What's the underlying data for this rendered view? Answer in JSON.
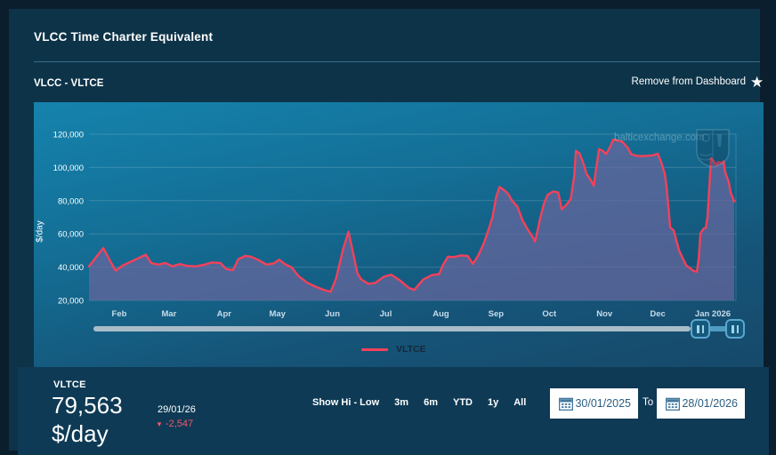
{
  "header": {
    "title": "VLCC Time Charter Equivalent",
    "subtitle": "VLCC - VLTCE",
    "action_label": "Remove from Dashboard",
    "star_icon": "★"
  },
  "chart": {
    "watermark": "balticexchange.com",
    "ylabel": "$/day",
    "legend": [
      {
        "label": "VLTCE",
        "color": "#f4415a"
      }
    ]
  },
  "chart_data": {
    "type": "line",
    "title": "VLCC - VLTCE",
    "ylabel": "$/day",
    "ylim": [
      20000,
      120000
    ],
    "yticks": [
      20000,
      40000,
      60000,
      80000,
      100000,
      120000
    ],
    "x_unit": "days since 30/01/2025",
    "xlim": [
      0,
      364
    ],
    "x_range_labels": [
      "30/01/2025",
      "28/01/2026"
    ],
    "xticks": [
      {
        "label": "Feb",
        "day": 17
      },
      {
        "label": "Mar",
        "day": 45
      },
      {
        "label": "Apr",
        "day": 76
      },
      {
        "label": "May",
        "day": 106
      },
      {
        "label": "Jun",
        "day": 137
      },
      {
        "label": "Jul",
        "day": 167
      },
      {
        "label": "Aug",
        "day": 198
      },
      {
        "label": "Sep",
        "day": 229
      },
      {
        "label": "Oct",
        "day": 259
      },
      {
        "label": "Nov",
        "day": 290
      },
      {
        "label": "Dec",
        "day": 320
      },
      {
        "label": "Jan 2026",
        "day": 351
      }
    ],
    "grid": true,
    "legend_position": "bottom",
    "series": [
      {
        "name": "VLTCE",
        "color": "#f4415a",
        "points": [
          [
            0,
            40500
          ],
          [
            4,
            46000
          ],
          [
            8,
            51500
          ],
          [
            12,
            43500
          ],
          [
            15,
            37800
          ],
          [
            19,
            41000
          ],
          [
            24,
            43500
          ],
          [
            28,
            45500
          ],
          [
            32,
            47500
          ],
          [
            35,
            42500
          ],
          [
            39,
            41500
          ],
          [
            43,
            42500
          ],
          [
            47,
            40500
          ],
          [
            51,
            41800
          ],
          [
            55,
            40800
          ],
          [
            60,
            40500
          ],
          [
            65,
            41500
          ],
          [
            69,
            42800
          ],
          [
            74,
            42500
          ],
          [
            77,
            39000
          ],
          [
            81,
            38200
          ],
          [
            84,
            44800
          ],
          [
            88,
            46800
          ],
          [
            91,
            46300
          ],
          [
            95,
            44500
          ],
          [
            100,
            41500
          ],
          [
            104,
            42300
          ],
          [
            107,
            44500
          ],
          [
            110,
            42000
          ],
          [
            114,
            39800
          ],
          [
            118,
            34500
          ],
          [
            123,
            30500
          ],
          [
            128,
            28000
          ],
          [
            133,
            26000
          ],
          [
            136,
            25200
          ],
          [
            139,
            33000
          ],
          [
            143,
            51000
          ],
          [
            146,
            61300
          ],
          [
            149,
            46500
          ],
          [
            151,
            36500
          ],
          [
            153,
            32800
          ],
          [
            157,
            30000
          ],
          [
            161,
            30500
          ],
          [
            166,
            34300
          ],
          [
            170,
            35500
          ],
          [
            175,
            32000
          ],
          [
            180,
            27500
          ],
          [
            183,
            26300
          ],
          [
            188,
            32500
          ],
          [
            193,
            35300
          ],
          [
            197,
            35800
          ],
          [
            199,
            41000
          ],
          [
            202,
            46300
          ],
          [
            205,
            46000
          ],
          [
            209,
            47000
          ],
          [
            213,
            46800
          ],
          [
            216,
            42000
          ],
          [
            219,
            47000
          ],
          [
            222,
            54000
          ],
          [
            224,
            60000
          ],
          [
            227,
            70000
          ],
          [
            229,
            82000
          ],
          [
            231,
            88300
          ],
          [
            234,
            86000
          ],
          [
            236,
            83800
          ],
          [
            238,
            80000
          ],
          [
            241,
            76500
          ],
          [
            244,
            68000
          ],
          [
            247,
            62500
          ],
          [
            250,
            57500
          ],
          [
            251,
            55400
          ],
          [
            254,
            70000
          ],
          [
            256,
            78300
          ],
          [
            258,
            83500
          ],
          [
            261,
            85500
          ],
          [
            264,
            85000
          ],
          [
            266,
            74700
          ],
          [
            269,
            78000
          ],
          [
            271,
            81000
          ],
          [
            273,
            95000
          ],
          [
            274,
            110000
          ],
          [
            276,
            108500
          ],
          [
            278,
            103000
          ],
          [
            280,
            96000
          ],
          [
            282,
            93000
          ],
          [
            284,
            89000
          ],
          [
            285,
            97000
          ],
          [
            287,
            111000
          ],
          [
            289,
            110000
          ],
          [
            291,
            108000
          ],
          [
            293,
            112000
          ],
          [
            295,
            116800
          ],
          [
            298,
            116000
          ],
          [
            300,
            115500
          ],
          [
            303,
            112000
          ],
          [
            305,
            108000
          ],
          [
            308,
            107000
          ],
          [
            311,
            106800
          ],
          [
            314,
            107000
          ],
          [
            317,
            107200
          ],
          [
            320,
            108300
          ],
          [
            322,
            103000
          ],
          [
            324,
            96000
          ],
          [
            325,
            88000
          ],
          [
            327,
            64000
          ],
          [
            329,
            62000
          ],
          [
            332,
            50000
          ],
          [
            334,
            45500
          ],
          [
            336,
            41000
          ],
          [
            338,
            39500
          ],
          [
            340,
            37800
          ],
          [
            342,
            37200
          ],
          [
            343,
            45000
          ],
          [
            344,
            60500
          ],
          [
            346,
            63300
          ],
          [
            347,
            63500
          ],
          [
            348,
            70000
          ],
          [
            350,
            105600
          ],
          [
            352,
            103000
          ],
          [
            353,
            101200
          ],
          [
            354,
            103200
          ],
          [
            356,
            102800
          ],
          [
            357,
            103800
          ],
          [
            358,
            97000
          ],
          [
            360,
            91000
          ],
          [
            361,
            85000
          ],
          [
            363,
            79563
          ]
        ]
      }
    ]
  },
  "footer": {
    "symbol": "VLTCE",
    "value": "79,563",
    "unit": "$/day",
    "date": "29/01/26",
    "change": "-2,547",
    "change_direction": "down",
    "show_hilow_label": "Show Hi - Low",
    "ranges": [
      "3m",
      "6m",
      "YTD",
      "1y",
      "All"
    ],
    "date_from": "30/01/2025",
    "to_label": "To",
    "date_to": "28/01/2026"
  },
  "colors": {
    "accent_line": "#f4415a",
    "negative": "#f4566b",
    "page_bg": "#0a1e2d",
    "card_bg": "#0d3348",
    "footer_bg": "#0e3a55",
    "area_fill": "rgba(104,102,158,0.72)",
    "scroll_track": "#a9bcc8",
    "handle_border": "#5aa7cf",
    "date_text": "#2a5f83"
  }
}
